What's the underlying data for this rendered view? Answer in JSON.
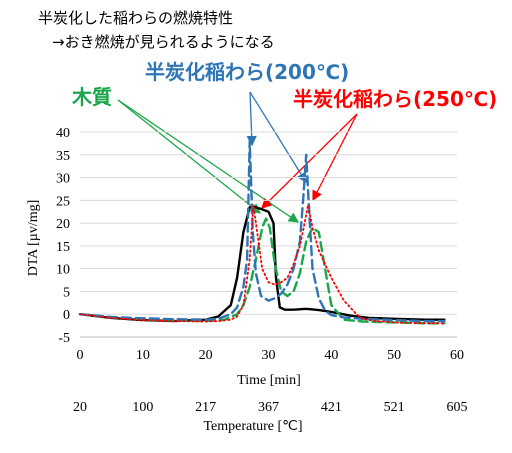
{
  "title_lines": [
    "半炭化した稲わらの燃焼特性",
    "→おき燃焼が見られるようになる"
  ],
  "annotations": {
    "wood": {
      "label": "木質",
      "color": "#1aa64a"
    },
    "rice200": {
      "label": "半炭化稲わら(200℃)",
      "color": "#2e75b6"
    },
    "rice250": {
      "label": "半炭化稲わら(250℃)",
      "color": "#ff0000"
    }
  },
  "chart_data": {
    "type": "line",
    "xlabel": "Time [min]",
    "ylabel": "DTA [µv/mg]",
    "xlim": [
      0,
      60
    ],
    "ylim": [
      -5,
      40
    ],
    "xticks": [
      0,
      10,
      20,
      30,
      40,
      50,
      60
    ],
    "yticks": [
      -5,
      0,
      5,
      10,
      15,
      20,
      25,
      30,
      35,
      40
    ],
    "grid": "horizontal",
    "secondary_axis": {
      "label": "Temperature [℃]",
      "tick_labels": [
        "20",
        "100",
        "217",
        "367",
        "421",
        "521",
        "605"
      ]
    },
    "series": [
      {
        "key": "black",
        "color": "#000000",
        "style": "solid",
        "x": [
          0,
          5,
          10,
          15,
          20,
          22,
          24,
          25,
          26,
          27,
          28,
          29,
          30,
          30.8,
          31.2,
          31.8,
          32.6,
          34,
          36,
          38,
          40,
          43,
          46,
          50,
          55,
          58
        ],
        "y": [
          0,
          -0.8,
          -1.3,
          -1.5,
          -1.2,
          -0.5,
          2,
          8,
          18,
          23.5,
          23.5,
          23,
          22.5,
          20,
          8,
          1.5,
          1,
          1,
          1.2,
          0.9,
          0.5,
          -0.3,
          -0.8,
          -1,
          -1.2,
          -1.2
        ]
      },
      {
        "key": "wood",
        "color": "#1aa64a",
        "style": "dash",
        "x": [
          0,
          5,
          10,
          15,
          20,
          23,
          25,
          26,
          27,
          28,
          29,
          29.6,
          30.2,
          31,
          32,
          33,
          34,
          35,
          36,
          37,
          38,
          39,
          40,
          42,
          45,
          50,
          55,
          58
        ],
        "y": [
          0,
          -0.7,
          -1.1,
          -1.4,
          -1.5,
          -1.2,
          0,
          2,
          6,
          12,
          19,
          21,
          19,
          11,
          5,
          4,
          5,
          9,
          16,
          19,
          18,
          10,
          2,
          -1.2,
          -1.6,
          -1.8,
          -2,
          -2
        ]
      },
      {
        "key": "rice200",
        "color": "#2e75b6",
        "style": "dash",
        "x": [
          0,
          5,
          10,
          15,
          20,
          22,
          24,
          25,
          26,
          26.6,
          27,
          27.5,
          28,
          28.8,
          30,
          31,
          32,
          33,
          34,
          35,
          35.5,
          36,
          36.5,
          37,
          38,
          39,
          40,
          42,
          45,
          50,
          55,
          58
        ],
        "y": [
          0,
          -0.6,
          -0.9,
          -1.1,
          -1.2,
          -1,
          0,
          1.5,
          6,
          12,
          38,
          18,
          9,
          4,
          3,
          3.5,
          4.5,
          6.5,
          10,
          16,
          25,
          35,
          22,
          10,
          3.5,
          0.8,
          -0.2,
          -0.7,
          -1,
          -1.3,
          -1.5,
          -1.5
        ]
      },
      {
        "key": "rice250",
        "color": "#ff0000",
        "style": "dot",
        "x": [
          0,
          5,
          10,
          15,
          20,
          22,
          24,
          25,
          26,
          27,
          27.6,
          28.2,
          29,
          30,
          31,
          32,
          33,
          34,
          35,
          35.6,
          36.3,
          37,
          38,
          40,
          42,
          44,
          45,
          47,
          50,
          55,
          58
        ],
        "y": [
          0,
          -0.8,
          -1.3,
          -1.5,
          -1.6,
          -1.5,
          -1.2,
          -0.5,
          2,
          12,
          24,
          18,
          10,
          7,
          6.5,
          7,
          8,
          11,
          15,
          19,
          24,
          19,
          14,
          8,
          3,
          0,
          -1,
          -1.5,
          -1.8,
          -2,
          -2
        ]
      }
    ]
  }
}
